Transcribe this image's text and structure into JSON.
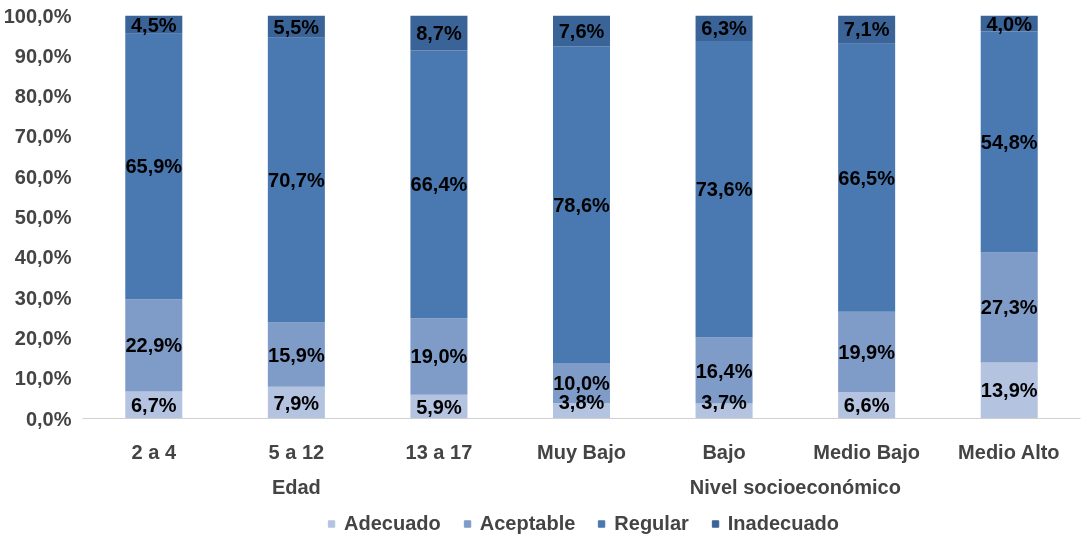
{
  "chart_data": {
    "type": "bar",
    "stacked": true,
    "categories": [
      "2 a 4",
      "5 a 12",
      "13 a 17",
      "Muy Bajo",
      "Bajo",
      "Medio Bajo",
      "Medio Alto"
    ],
    "series": [
      {
        "name": "Adecuado",
        "color": "#b4c3e0",
        "values": [
          6.7,
          7.9,
          5.9,
          3.8,
          3.7,
          6.6,
          13.9
        ],
        "value_labels": [
          "6,7%",
          "7,9%",
          "5,9%",
          "3,8%",
          "3,7%",
          "6,6%",
          "13,9%"
        ]
      },
      {
        "name": "Aceptable",
        "color": "#7f9cc9",
        "values": [
          22.9,
          15.9,
          19.0,
          10.0,
          16.4,
          19.9,
          27.3
        ],
        "value_labels": [
          "22,9%",
          "15,9%",
          "19,0%",
          "10,0%",
          "16,4%",
          "19,9%",
          "27,3%"
        ]
      },
      {
        "name": "Regular",
        "color": "#4a78b0",
        "values": [
          65.9,
          70.7,
          66.4,
          78.6,
          73.6,
          66.5,
          54.8
        ],
        "value_labels": [
          "65,9%",
          "70,7%",
          "66,4%",
          "78,6%",
          "73,6%",
          "66,5%",
          "54,8%"
        ]
      },
      {
        "name": "Inadecuado",
        "color": "#3a6498",
        "values": [
          4.5,
          5.5,
          8.7,
          7.6,
          6.3,
          7.1,
          4.0
        ],
        "value_labels": [
          "4,5%",
          "5,5%",
          "8,7%",
          "7,6%",
          "6,3%",
          "7,1%",
          "4,0%"
        ]
      }
    ],
    "ylim": [
      0,
      100
    ],
    "yticks": [
      {
        "value": 0,
        "label": "0,0%"
      },
      {
        "value": 10,
        "label": "10,0%"
      },
      {
        "value": 20,
        "label": "20,0%"
      },
      {
        "value": 30,
        "label": "30,0%"
      },
      {
        "value": 40,
        "label": "40,0%"
      },
      {
        "value": 50,
        "label": "50,0%"
      },
      {
        "value": 60,
        "label": "60,0%"
      },
      {
        "value": 70,
        "label": "70,0%"
      },
      {
        "value": 80,
        "label": "80,0%"
      },
      {
        "value": 90,
        "label": "90,0%"
      },
      {
        "value": 100,
        "label": "100,0%"
      }
    ],
    "annotations": [
      "Edad",
      "Nivel socioeconómico"
    ],
    "grid": false,
    "legend": "bottom"
  }
}
